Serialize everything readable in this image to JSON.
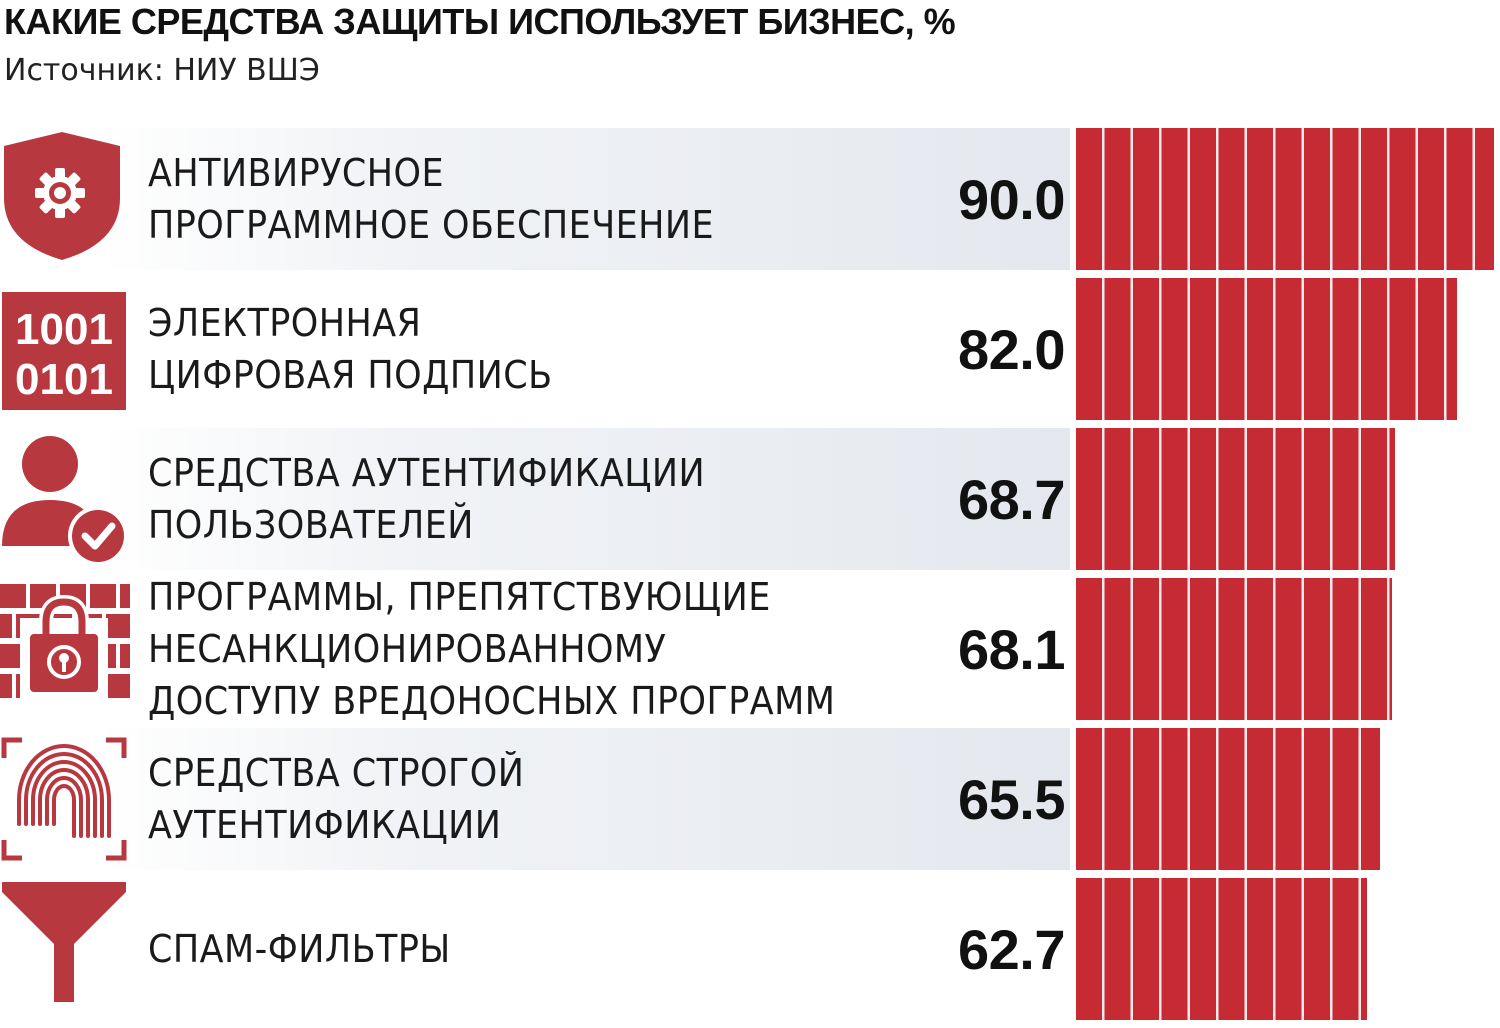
{
  "title": "КАКИЕ СРЕДСТВА ЗАЩИТЫ ИСПОЛЬЗУЕТ БИЗНЕС, %",
  "subtitle": "Источник: НИУ ВШЭ",
  "colors": {
    "bar": "#c62b33",
    "icon": "#b8383f",
    "row_background": "#e4e8ee"
  },
  "rows": [
    {
      "icon": "shield-gear-icon",
      "lines": [
        "АНТИВИРУСНОЕ",
        "ПРОГРАММНОЕ ОБЕСПЕЧЕНИЕ"
      ],
      "value_label": "90.0"
    },
    {
      "icon": "binary-code-icon",
      "lines": [
        "ЭЛЕКТРОННАЯ",
        "ЦИФРОВАЯ ПОДПИСЬ"
      ],
      "value_label": "82.0",
      "icon_text": [
        "1001",
        "0101"
      ]
    },
    {
      "icon": "user-check-icon",
      "lines": [
        "СРЕДСТВА АУТЕНТИФИКАЦИИ",
        "ПОЛЬЗОВАТЕЛЕЙ"
      ],
      "value_label": "68.7"
    },
    {
      "icon": "firewall-lock-icon",
      "lines": [
        "ПРОГРАММЫ, ПРЕПЯТСТВУЮЩИЕ",
        "НЕСАНКЦИОНИРОВАННОМУ",
        "ДОСТУПУ ВРЕДОНОСНЫХ ПРОГРАММ"
      ],
      "value_label": "68.1"
    },
    {
      "icon": "fingerprint-icon",
      "lines": [
        "СРЕДСТВА СТРОГОЙ",
        "АУТЕНТИФИКАЦИИ"
      ],
      "value_label": "65.5"
    },
    {
      "icon": "funnel-icon",
      "lines": [
        "СПАМ-ФИЛЬТРЫ"
      ],
      "value_label": "62.7"
    }
  ],
  "chart_data": {
    "type": "bar",
    "orientation": "horizontal",
    "title": "КАКИЕ СРЕДСТВА ЗАЩИТЫ ИСПОЛЬЗУЕТ БИЗНЕС, %",
    "subtitle": "Источник: НИУ ВШЭ",
    "categories": [
      "АНТИВИРУСНОЕ ПРОГРАММНОЕ ОБЕСПЕЧЕНИЕ",
      "ЭЛЕКТРОННАЯ ЦИФРОВАЯ ПОДПИСЬ",
      "СРЕДСТВА АУТЕНТИФИКАЦИИ ПОЛЬЗОВАТЕЛЕЙ",
      "ПРОГРАММЫ, ПРЕПЯТСТВУЮЩИЕ НЕСАНКЦИОНИРОВАННОМУ ДОСТУПУ ВРЕДОНОСНЫХ ПРОГРАММ",
      "СРЕДСТВА СТРОГОЙ АУТЕНТИФИКАЦИИ",
      "СПАМ-ФИЛЬТРЫ"
    ],
    "values": [
      90.0,
      82.0,
      68.7,
      68.1,
      65.5,
      62.7
    ],
    "xlim": [
      0,
      90
    ],
    "grid": false,
    "legend": "none"
  }
}
